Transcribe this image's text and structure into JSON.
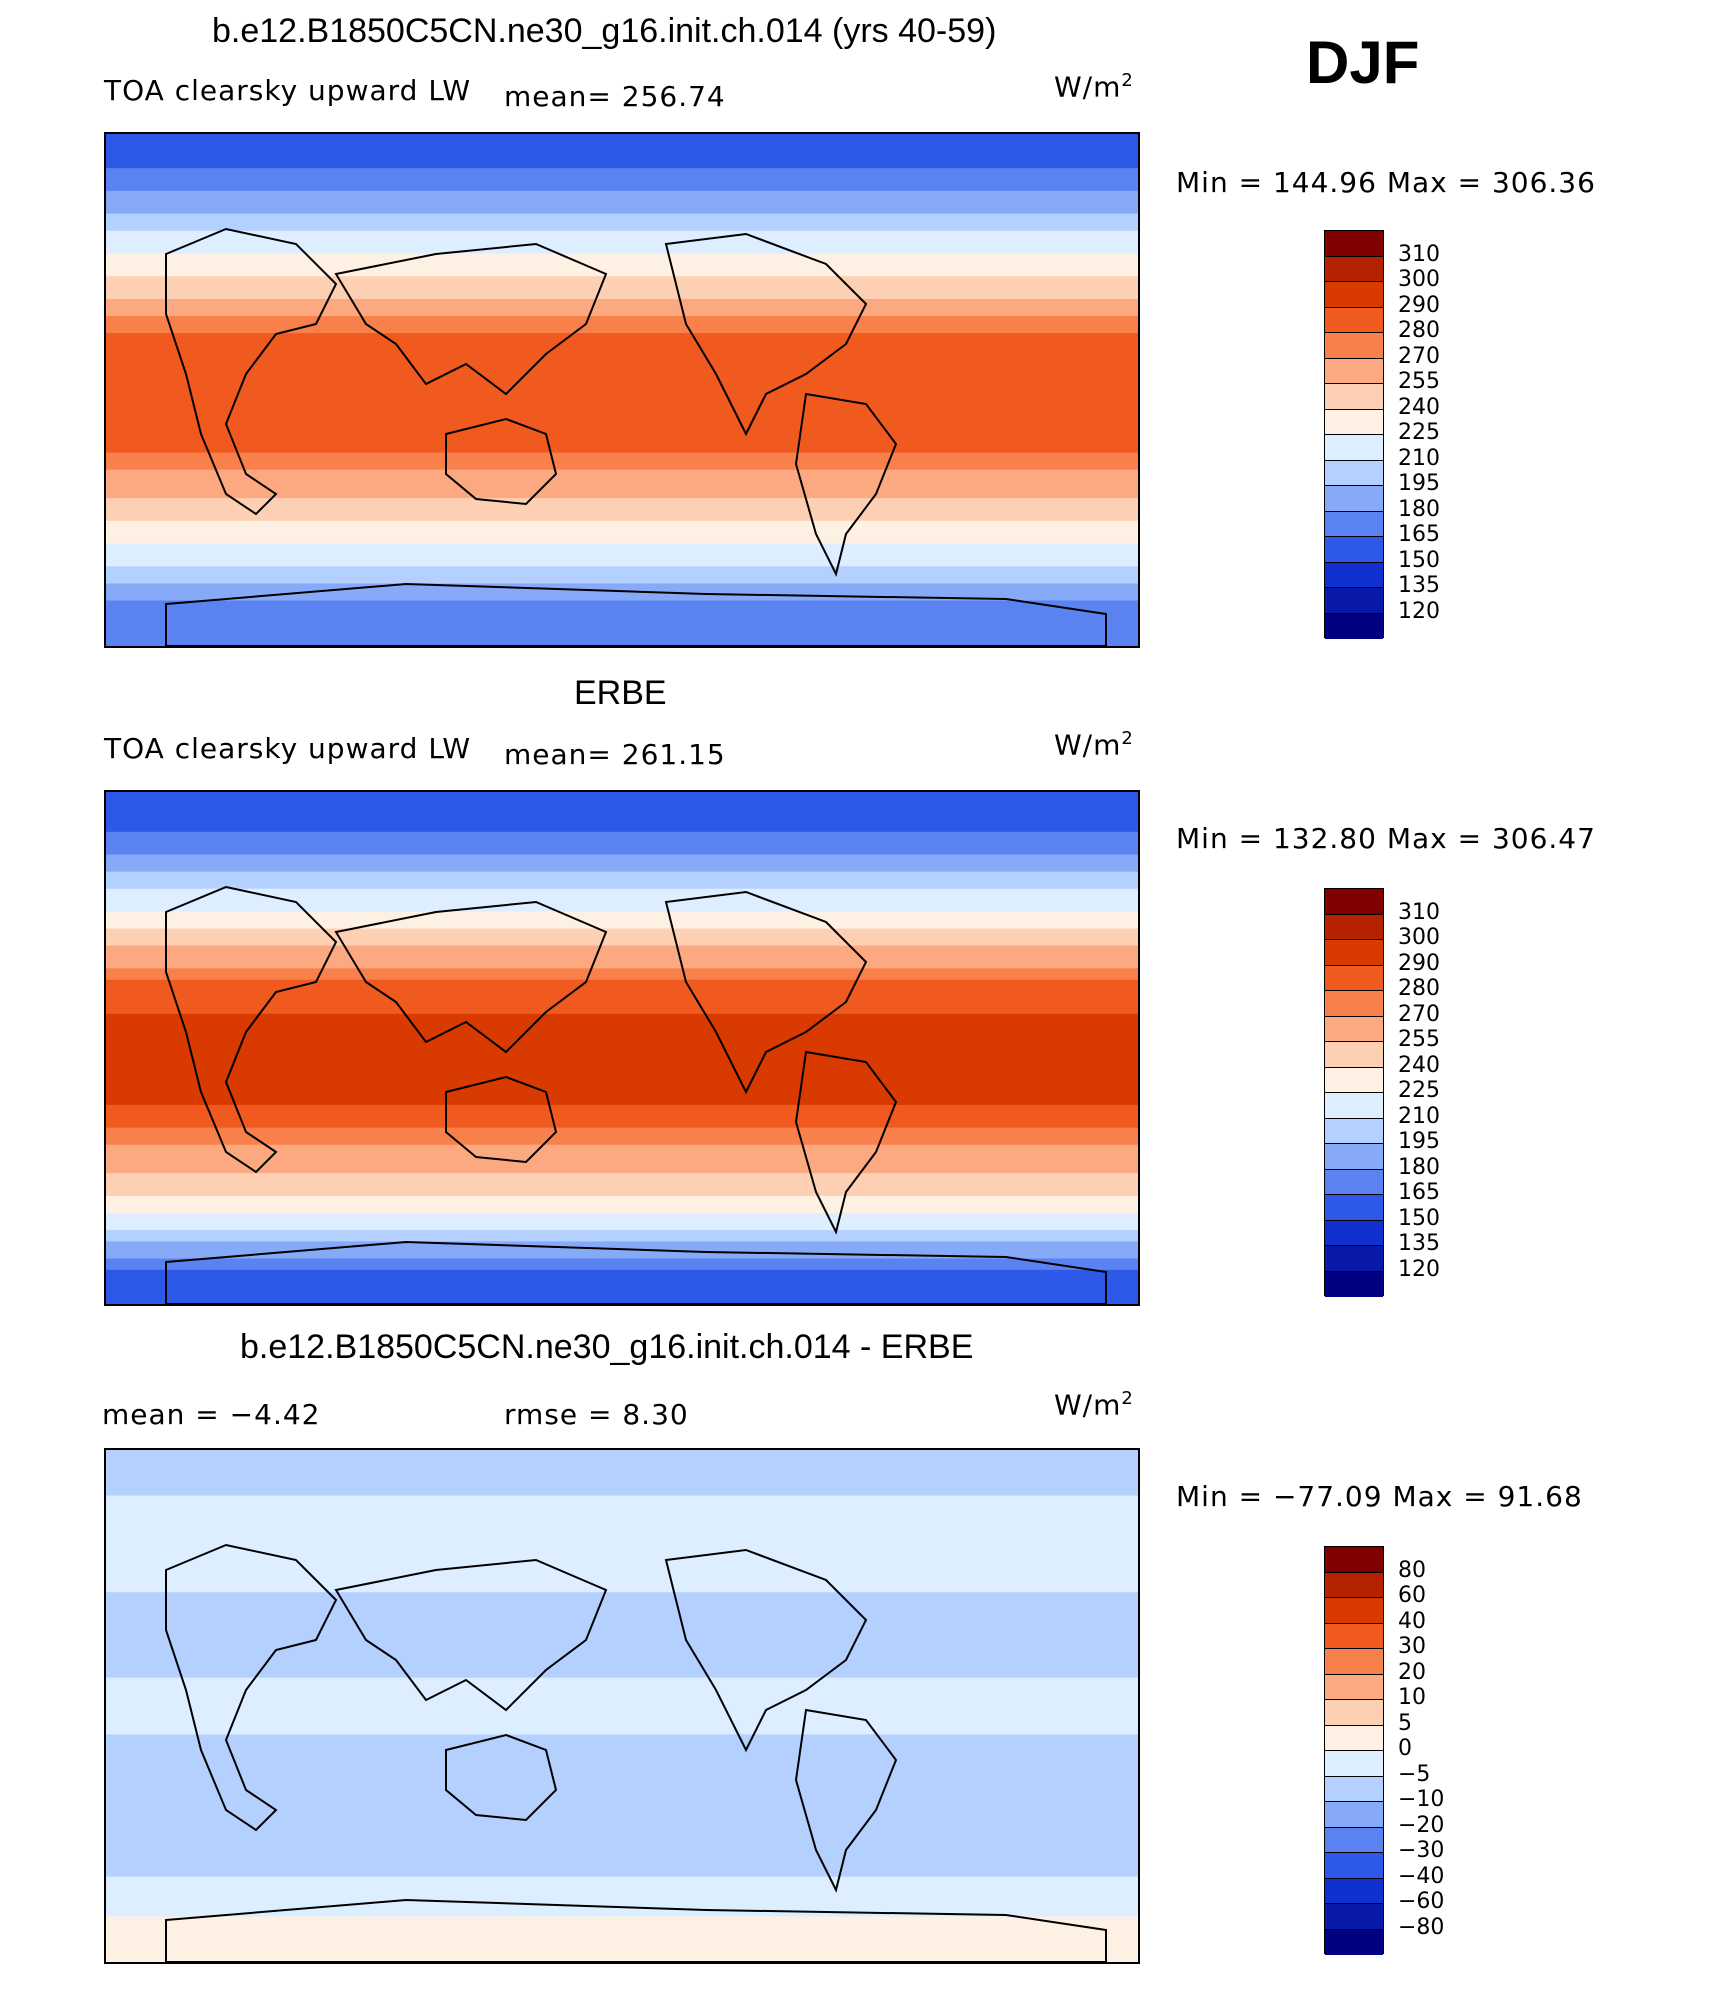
{
  "season": "DJF",
  "units_main": "W/m",
  "units_sup": "2",
  "panels": [
    {
      "title": "b.e12.B1850C5CN.ne30_g16.init.ch.014 (yrs 40-59)",
      "variable": "TOA clearsky upward LW",
      "stat_text": "mean=  256.74",
      "minmax": "Min  =  144.96  Max  =  306.36"
    },
    {
      "title": "ERBE",
      "variable": "TOA clearsky upward LW",
      "stat_text": "mean=  261.15",
      "minmax": "Min  =  132.80  Max  =  306.47"
    },
    {
      "title": "b.e12.B1850C5CN.ne30_g16.init.ch.014 - ERBE",
      "mean_text": "mean  =    −4.42",
      "rmse_text": "rmse  =     8.30",
      "minmax": "Min  =  −77.09  Max  =    91.68"
    }
  ],
  "chart_data": [
    {
      "type": "heatmap",
      "title": "b.e12.B1850C5CN.ne30_g16.init.ch.014 (yrs 40-59)",
      "subtitle": "TOA clearsky upward LW",
      "units": "W/m2",
      "mean": 256.74,
      "min": 144.96,
      "max": 306.36,
      "colorbar_levels": [
        310,
        300,
        290,
        280,
        270,
        255,
        240,
        225,
        210,
        195,
        180,
        165,
        150,
        135,
        120
      ],
      "colors": [
        "#800000",
        "#b42200",
        "#d83a00",
        "#f05a1e",
        "#f8804a",
        "#fca880",
        "#fdd0b4",
        "#fff0e4",
        "#dceeff",
        "#b4d0ff",
        "#86aaf8",
        "#5a82f0",
        "#2e58e8",
        "#1030d0",
        "#0818a8",
        "#000080"
      ],
      "latitude_profile": [
        {
          "lat": 80,
          "value": 160
        },
        {
          "lat": 60,
          "value": 200
        },
        {
          "lat": 40,
          "value": 240
        },
        {
          "lat": 20,
          "value": 282
        },
        {
          "lat": 0,
          "value": 290
        },
        {
          "lat": -20,
          "value": 284
        },
        {
          "lat": -40,
          "value": 252
        },
        {
          "lat": -60,
          "value": 215
        },
        {
          "lat": -80,
          "value": 165
        }
      ]
    },
    {
      "type": "heatmap",
      "title": "ERBE",
      "subtitle": "TOA clearsky upward LW",
      "units": "W/m2",
      "mean": 261.15,
      "min": 132.8,
      "max": 306.47,
      "colorbar_levels": [
        310,
        300,
        290,
        280,
        270,
        255,
        240,
        225,
        210,
        195,
        180,
        165,
        150,
        135,
        120
      ],
      "colors": [
        "#800000",
        "#b42200",
        "#d83a00",
        "#f05a1e",
        "#f8804a",
        "#fca880",
        "#fdd0b4",
        "#fff0e4",
        "#dceeff",
        "#b4d0ff",
        "#86aaf8",
        "#5a82f0",
        "#2e58e8",
        "#1030d0",
        "#0818a8",
        "#000080"
      ],
      "latitude_profile": [
        {
          "lat": 80,
          "value": 155
        },
        {
          "lat": 60,
          "value": 200
        },
        {
          "lat": 40,
          "value": 245
        },
        {
          "lat": 20,
          "value": 288
        },
        {
          "lat": 0,
          "value": 293
        },
        {
          "lat": -20,
          "value": 290
        },
        {
          "lat": -40,
          "value": 262
        },
        {
          "lat": -60,
          "value": 222
        },
        {
          "lat": -80,
          "value": 160
        }
      ]
    },
    {
      "type": "heatmap",
      "title": "b.e12.B1850C5CN.ne30_g16.init.ch.014 - ERBE",
      "units": "W/m2",
      "mean": -4.42,
      "rmse": 8.3,
      "min": -77.09,
      "max": 91.68,
      "colorbar_levels": [
        80,
        60,
        40,
        30,
        20,
        10,
        5,
        0,
        -5,
        -10,
        -20,
        -30,
        -40,
        -60,
        -80
      ],
      "colors": [
        "#800000",
        "#b42200",
        "#d83a00",
        "#f05a1e",
        "#f8804a",
        "#fca880",
        "#fdd0b4",
        "#fff0e4",
        "#dceeff",
        "#b4d0ff",
        "#86aaf8",
        "#5a82f0",
        "#2e58e8",
        "#1030d0",
        "#0818a8",
        "#000080"
      ],
      "latitude_profile": [
        {
          "lat": 80,
          "value": -6
        },
        {
          "lat": 60,
          "value": -3
        },
        {
          "lat": 40,
          "value": -5
        },
        {
          "lat": 20,
          "value": -6
        },
        {
          "lat": 0,
          "value": -4
        },
        {
          "lat": -20,
          "value": -6
        },
        {
          "lat": -40,
          "value": -7
        },
        {
          "lat": -60,
          "value": -5
        },
        {
          "lat": -80,
          "value": 2
        }
      ]
    }
  ]
}
